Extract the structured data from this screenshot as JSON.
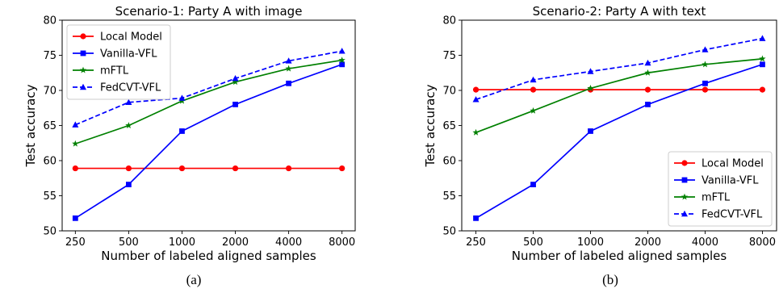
{
  "chart_data": [
    {
      "type": "line",
      "title": "Scenario-1: Party A with image",
      "xlabel": "Number of labeled aligned samples",
      "ylabel": "Test accuracy",
      "categories": [
        "250",
        "500",
        "1000",
        "2000",
        "4000",
        "8000"
      ],
      "ylim": [
        50,
        80
      ],
      "yticks": [
        50,
        55,
        60,
        65,
        70,
        75,
        80
      ],
      "legend": "upper-left",
      "grid": false,
      "caption": "(a)",
      "series": [
        {
          "name": "Local Model",
          "color": "#ff0000",
          "marker": "circle",
          "dash": "solid",
          "values": [
            58.9,
            58.9,
            58.9,
            58.9,
            58.9,
            58.9
          ]
        },
        {
          "name": "Vanilla-VFL",
          "color": "#0000ff",
          "marker": "square",
          "dash": "solid",
          "values": [
            51.8,
            56.6,
            64.2,
            68.0,
            71.0,
            73.7
          ]
        },
        {
          "name": "mFTL",
          "color": "#008000",
          "marker": "star",
          "dash": "solid",
          "values": [
            62.4,
            65.0,
            68.5,
            71.2,
            73.1,
            74.3
          ]
        },
        {
          "name": "FedCVT-VFL",
          "color": "#0000ff",
          "marker": "triangle",
          "dash": "dashed",
          "values": [
            65.1,
            68.3,
            68.9,
            71.7,
            74.2,
            75.6
          ]
        }
      ]
    },
    {
      "type": "line",
      "title": "Scenario-2: Party A with text",
      "xlabel": "Number of labeled aligned samples",
      "ylabel": "Test accuracy",
      "categories": [
        "250",
        "500",
        "1000",
        "2000",
        "4000",
        "8000"
      ],
      "ylim": [
        50,
        80
      ],
      "yticks": [
        50,
        55,
        60,
        65,
        70,
        75,
        80
      ],
      "legend": "lower-right",
      "grid": false,
      "caption": "(b)",
      "series": [
        {
          "name": "Local Model",
          "color": "#ff0000",
          "marker": "circle",
          "dash": "solid",
          "values": [
            70.1,
            70.1,
            70.1,
            70.1,
            70.1,
            70.1
          ]
        },
        {
          "name": "Vanilla-VFL",
          "color": "#0000ff",
          "marker": "square",
          "dash": "solid",
          "values": [
            51.8,
            56.6,
            64.2,
            68.0,
            71.0,
            73.7
          ]
        },
        {
          "name": "mFTL",
          "color": "#008000",
          "marker": "star",
          "dash": "solid",
          "values": [
            64.0,
            67.1,
            70.3,
            72.5,
            73.7,
            74.5
          ]
        },
        {
          "name": "FedCVT-VFL",
          "color": "#0000ff",
          "marker": "triangle",
          "dash": "dashed",
          "values": [
            68.7,
            71.5,
            72.7,
            73.9,
            75.8,
            77.4
          ]
        }
      ]
    }
  ]
}
